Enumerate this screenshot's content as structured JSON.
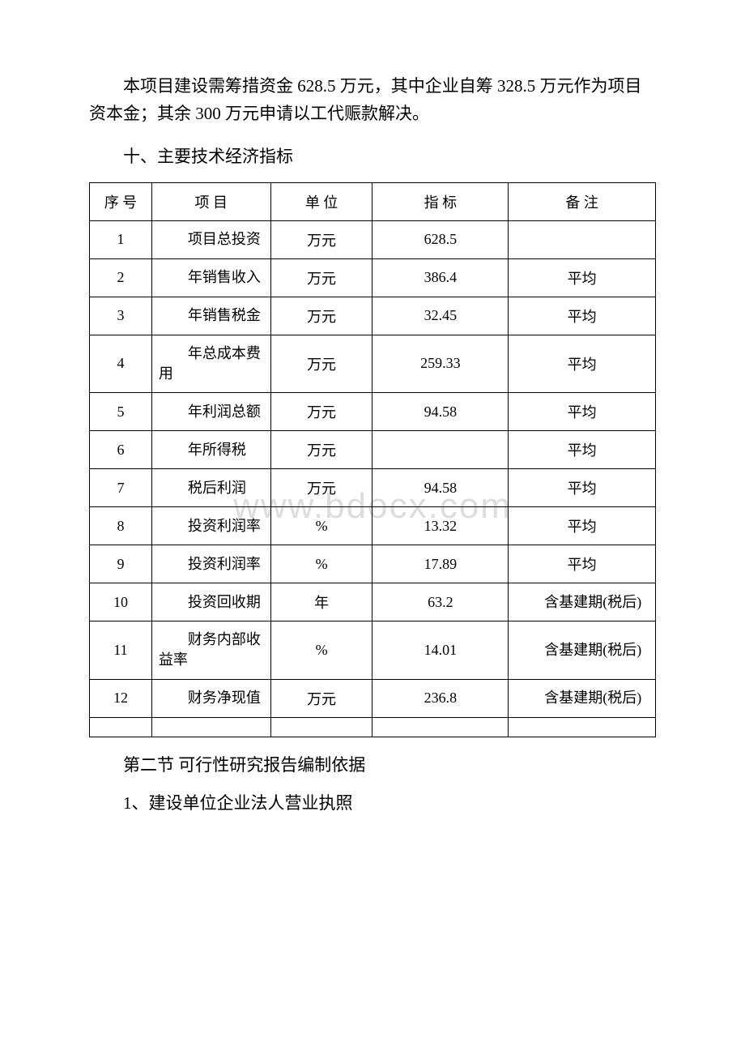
{
  "watermark": "www.bdocx.com",
  "paragraphs": {
    "p1": "本项目建设需筹措资金 628.5 万元，其中企业自筹 328.5 万元作为项目资本金；其余 300 万元申请以工代赈款解决。",
    "h1": "十、主要技术经济指标",
    "h2": "第二节 可行性研究报告编制依据",
    "h3": "1、建设单位企业法人营业执照"
  },
  "table": {
    "columns": [
      "序 号",
      "项 目",
      "单 位",
      "指 标",
      "备 注"
    ],
    "column_widths": [
      "11%",
      "21%",
      "18%",
      "24%",
      "26%"
    ],
    "header_align": "center",
    "border_color": "#000000",
    "font_size": 18,
    "rows": [
      {
        "seq": "1",
        "item": "项目总投资",
        "unit": "万元",
        "value": "628.5",
        "note": ""
      },
      {
        "seq": "2",
        "item": "年销售收入",
        "unit": "万元",
        "value": "386.4",
        "note": "平均",
        "note_center": true
      },
      {
        "seq": "3",
        "item": "年销售税金",
        "unit": "万元",
        "value": "32.45",
        "note": "平均",
        "note_center": true
      },
      {
        "seq": "4",
        "item": "年总成本费用",
        "unit": "万元",
        "value": "259.33",
        "note": "平均",
        "note_center": true
      },
      {
        "seq": "5",
        "item": "年利润总额",
        "unit": "万元",
        "value": "94.58",
        "note": "平均",
        "note_center": true
      },
      {
        "seq": "6",
        "item": "年所得税",
        "unit": "万元",
        "value": "",
        "note": "平均",
        "note_center": true
      },
      {
        "seq": "7",
        "item": "税后利润",
        "unit": "万元",
        "value": "94.58",
        "note": "平均",
        "note_center": true
      },
      {
        "seq": "8",
        "item": "投资利润率",
        "unit": "%",
        "value": "13.32",
        "note": "平均",
        "note_center": true
      },
      {
        "seq": "9",
        "item": "投资利润率",
        "unit": "%",
        "value": "17.89",
        "note": "平均",
        "note_center": true
      },
      {
        "seq": "10",
        "item": "投资回收期",
        "unit": "年",
        "value": "63.2",
        "note": "含基建期(税后)"
      },
      {
        "seq": "11",
        "item": "财务内部收益率",
        "unit": "%",
        "value": "14.01",
        "note": "含基建期(税后)"
      },
      {
        "seq": "12",
        "item": "财务净现值",
        "unit": "万元",
        "value": "236.8",
        "note": "含基建期(税后)"
      }
    ]
  },
  "typography": {
    "body_font": "SimSun",
    "body_font_size": 21,
    "text_color": "#000000",
    "background_color": "#ffffff",
    "watermark_color": "#dddddd"
  }
}
